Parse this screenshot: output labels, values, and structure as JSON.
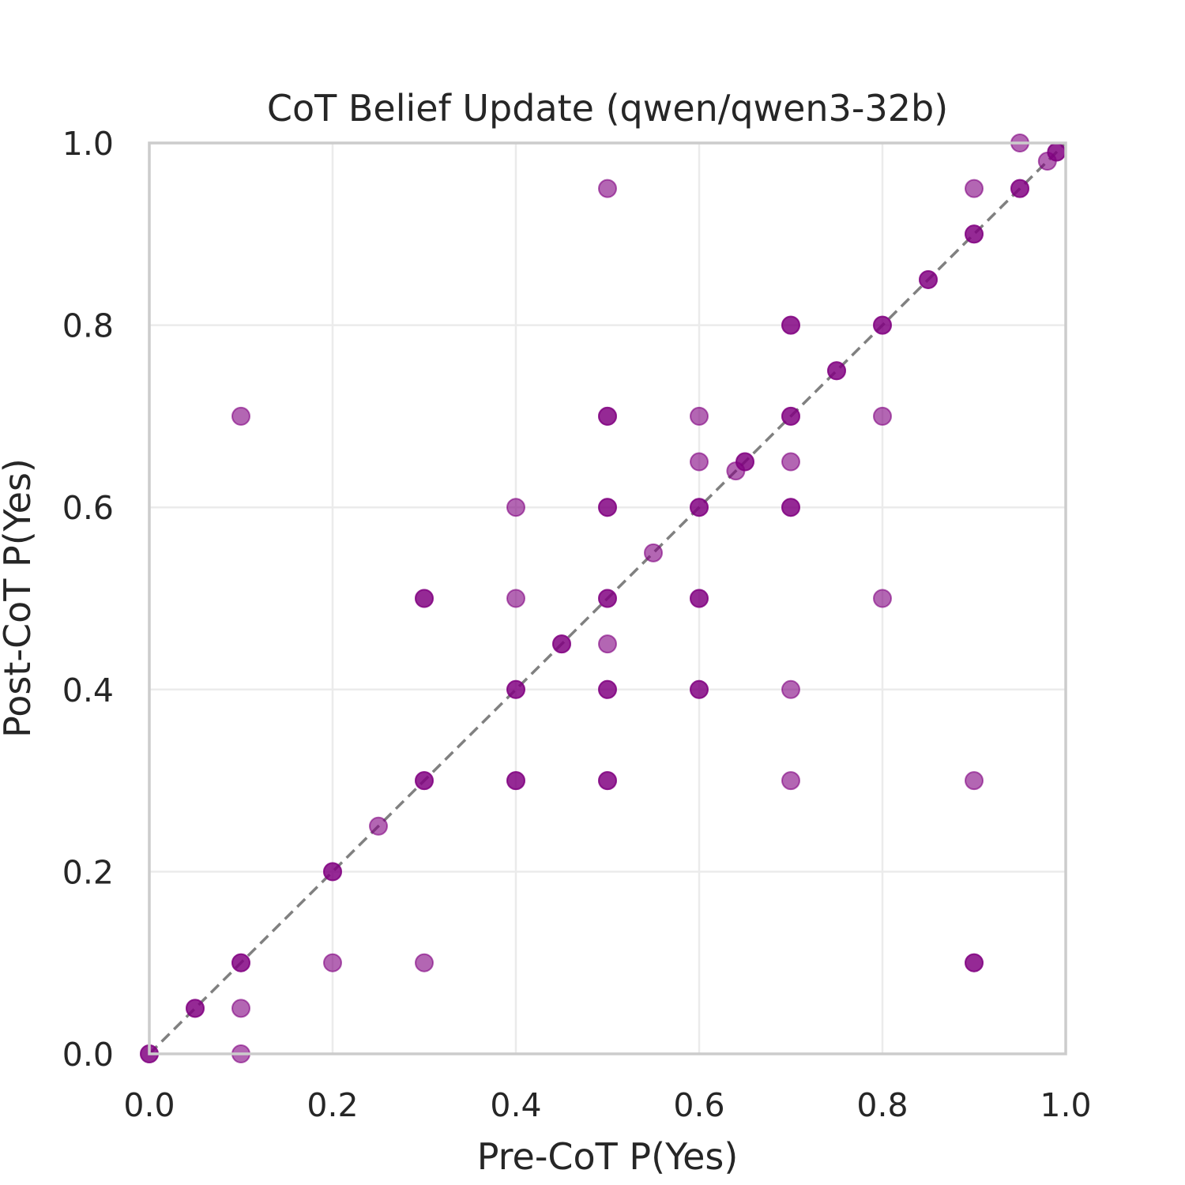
{
  "chart_data": {
    "type": "scatter",
    "title": "CoT Belief Update (qwen/qwen3-32b)",
    "xlabel": "Pre-CoT P(Yes)",
    "ylabel": "Post-CoT P(Yes)",
    "xlim": [
      0.0,
      1.0
    ],
    "ylim": [
      0.0,
      1.0
    ],
    "xticks": [
      "0.0",
      "0.2",
      "0.4",
      "0.6",
      "0.8",
      "1.0"
    ],
    "yticks": [
      "0.0",
      "0.2",
      "0.4",
      "0.6",
      "0.8",
      "1.0"
    ],
    "grid": true,
    "reference_line": {
      "style": "dashed",
      "color": "#808080",
      "from": [
        0,
        0
      ],
      "to": [
        1,
        1
      ]
    },
    "marker_color": "#800080",
    "series": [
      {
        "name": "questions",
        "points": [
          [
            0.0,
            0.0
          ],
          [
            0.0,
            0.0
          ],
          [
            0.05,
            0.05
          ],
          [
            0.05,
            0.05
          ],
          [
            0.1,
            0.1
          ],
          [
            0.1,
            0.1
          ],
          [
            0.1,
            0.05
          ],
          [
            0.1,
            0.0
          ],
          [
            0.1,
            0.7
          ],
          [
            0.2,
            0.2
          ],
          [
            0.2,
            0.2
          ],
          [
            0.2,
            0.1
          ],
          [
            0.25,
            0.25
          ],
          [
            0.3,
            0.3
          ],
          [
            0.3,
            0.3
          ],
          [
            0.3,
            0.5
          ],
          [
            0.3,
            0.5
          ],
          [
            0.3,
            0.1
          ],
          [
            0.4,
            0.4
          ],
          [
            0.4,
            0.4
          ],
          [
            0.4,
            0.3
          ],
          [
            0.4,
            0.3
          ],
          [
            0.4,
            0.5
          ],
          [
            0.4,
            0.6
          ],
          [
            0.45,
            0.45
          ],
          [
            0.45,
            0.45
          ],
          [
            0.5,
            0.5
          ],
          [
            0.5,
            0.5
          ],
          [
            0.5,
            0.6
          ],
          [
            0.5,
            0.6
          ],
          [
            0.5,
            0.7
          ],
          [
            0.5,
            0.7
          ],
          [
            0.5,
            0.4
          ],
          [
            0.5,
            0.4
          ],
          [
            0.5,
            0.3
          ],
          [
            0.5,
            0.3
          ],
          [
            0.5,
            0.45
          ],
          [
            0.5,
            0.95
          ],
          [
            0.55,
            0.55
          ],
          [
            0.6,
            0.6
          ],
          [
            0.6,
            0.6
          ],
          [
            0.6,
            0.5
          ],
          [
            0.6,
            0.5
          ],
          [
            0.6,
            0.4
          ],
          [
            0.6,
            0.4
          ],
          [
            0.6,
            0.7
          ],
          [
            0.6,
            0.65
          ],
          [
            0.64,
            0.64
          ],
          [
            0.65,
            0.65
          ],
          [
            0.65,
            0.65
          ],
          [
            0.7,
            0.7
          ],
          [
            0.7,
            0.7
          ],
          [
            0.7,
            0.8
          ],
          [
            0.7,
            0.8
          ],
          [
            0.7,
            0.6
          ],
          [
            0.7,
            0.6
          ],
          [
            0.7,
            0.65
          ],
          [
            0.7,
            0.4
          ],
          [
            0.7,
            0.3
          ],
          [
            0.75,
            0.75
          ],
          [
            0.75,
            0.75
          ],
          [
            0.8,
            0.8
          ],
          [
            0.8,
            0.8
          ],
          [
            0.8,
            0.7
          ],
          [
            0.8,
            0.5
          ],
          [
            0.85,
            0.85
          ],
          [
            0.85,
            0.85
          ],
          [
            0.9,
            0.9
          ],
          [
            0.9,
            0.9
          ],
          [
            0.9,
            0.95
          ],
          [
            0.9,
            0.3
          ],
          [
            0.9,
            0.1
          ],
          [
            0.9,
            0.1
          ],
          [
            0.95,
            0.95
          ],
          [
            0.95,
            0.95
          ],
          [
            0.95,
            1.0
          ],
          [
            0.98,
            0.98
          ],
          [
            0.99,
            0.99
          ],
          [
            0.99,
            0.99
          ]
        ]
      }
    ]
  }
}
